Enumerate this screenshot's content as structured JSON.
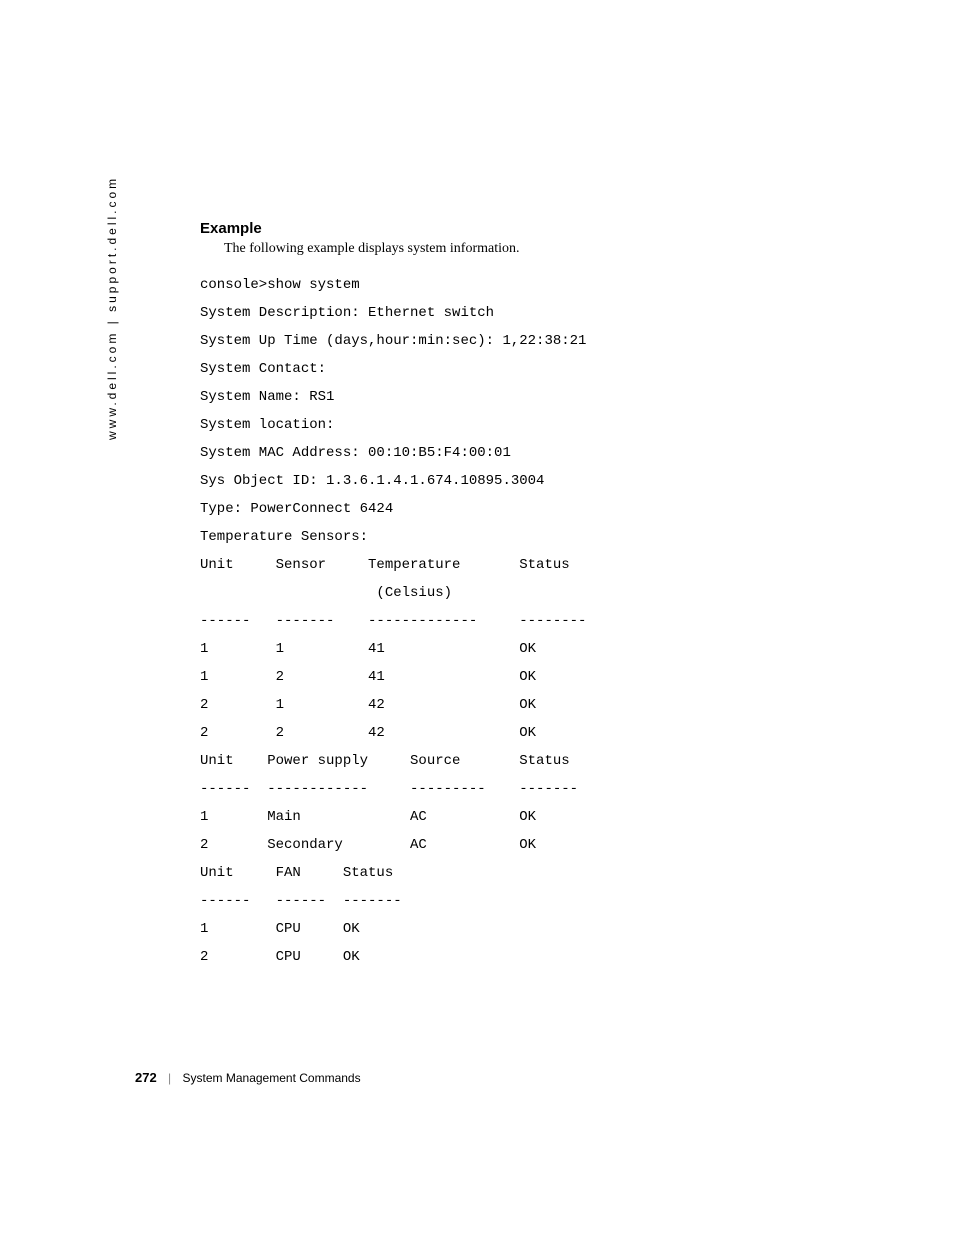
{
  "sidebar": {
    "text": "www.dell.com | support.dell.com"
  },
  "heading": {
    "example": "Example"
  },
  "intro": {
    "text": "The following example displays system information."
  },
  "console": {
    "lines": [
      "console>show system",
      "System Description: Ethernet switch",
      "System Up Time (days,hour:min:sec): 1,22:38:21",
      "System Contact:",
      "System Name: RS1",
      "System location:",
      "System MAC Address: 00:10:B5:F4:00:01",
      "Sys Object ID: 1.3.6.1.4.1.674.10895.3004",
      "Type: PowerConnect 6424",
      "Temperature Sensors:"
    ]
  },
  "temperature_table": {
    "headers": {
      "unit": "Unit",
      "sensor": "Sensor",
      "temperature": "Temperature",
      "temperature_unit": "(Celsius)",
      "status": "Status"
    },
    "separators": {
      "unit": "------",
      "sensor": "-------",
      "temperature": "-------------",
      "status": "--------"
    },
    "rows": [
      {
        "unit": "1",
        "sensor": "1",
        "temperature": "41",
        "status": "OK"
      },
      {
        "unit": "1",
        "sensor": "2",
        "temperature": "41",
        "status": "OK"
      },
      {
        "unit": "2",
        "sensor": "1",
        "temperature": "42",
        "status": "OK"
      },
      {
        "unit": "2",
        "sensor": "2",
        "temperature": "42",
        "status": "OK"
      }
    ]
  },
  "power_table": {
    "headers": {
      "unit": "Unit",
      "power_supply": "Power supply",
      "source": "Source",
      "status": "Status"
    },
    "separators": {
      "unit": "------",
      "power_supply": "------------",
      "source": "---------",
      "status": "-------"
    },
    "rows": [
      {
        "unit": "1",
        "power_supply": "Main",
        "source": "AC",
        "status": "OK"
      },
      {
        "unit": "2",
        "power_supply": "Secondary",
        "source": "AC",
        "status": "OK"
      }
    ]
  },
  "fan_table": {
    "headers": {
      "unit": "Unit",
      "fan": "FAN",
      "status": "Status"
    },
    "separators": {
      "unit": "------",
      "fan": "------",
      "status": "-------"
    },
    "rows": [
      {
        "unit": "1",
        "fan": "CPU",
        "status": "OK"
      },
      {
        "unit": "2",
        "fan": "CPU",
        "status": "OK"
      }
    ]
  },
  "footer": {
    "page_number": "272",
    "separator": "|",
    "section": "System Management Commands"
  },
  "layout": {
    "col_widths": {
      "temp": {
        "unit": 9,
        "sensor": 11,
        "temperature": 18,
        "status": 8
      },
      "power": {
        "unit": 8,
        "power_supply": 17,
        "source": 13,
        "status": 7
      },
      "fan": {
        "unit": 9,
        "fan": 8,
        "status": 7
      }
    }
  },
  "colors": {
    "background": "#ffffff",
    "text": "#000000"
  },
  "fonts": {
    "heading_family": "Arial, Helvetica, sans-serif",
    "body_family": "Georgia, 'Times New Roman', serif",
    "mono_family": "'Courier New', Courier, monospace",
    "heading_size": 15,
    "body_size": 14,
    "mono_size": 14,
    "sidebar_size": 12,
    "footer_size": 12
  }
}
